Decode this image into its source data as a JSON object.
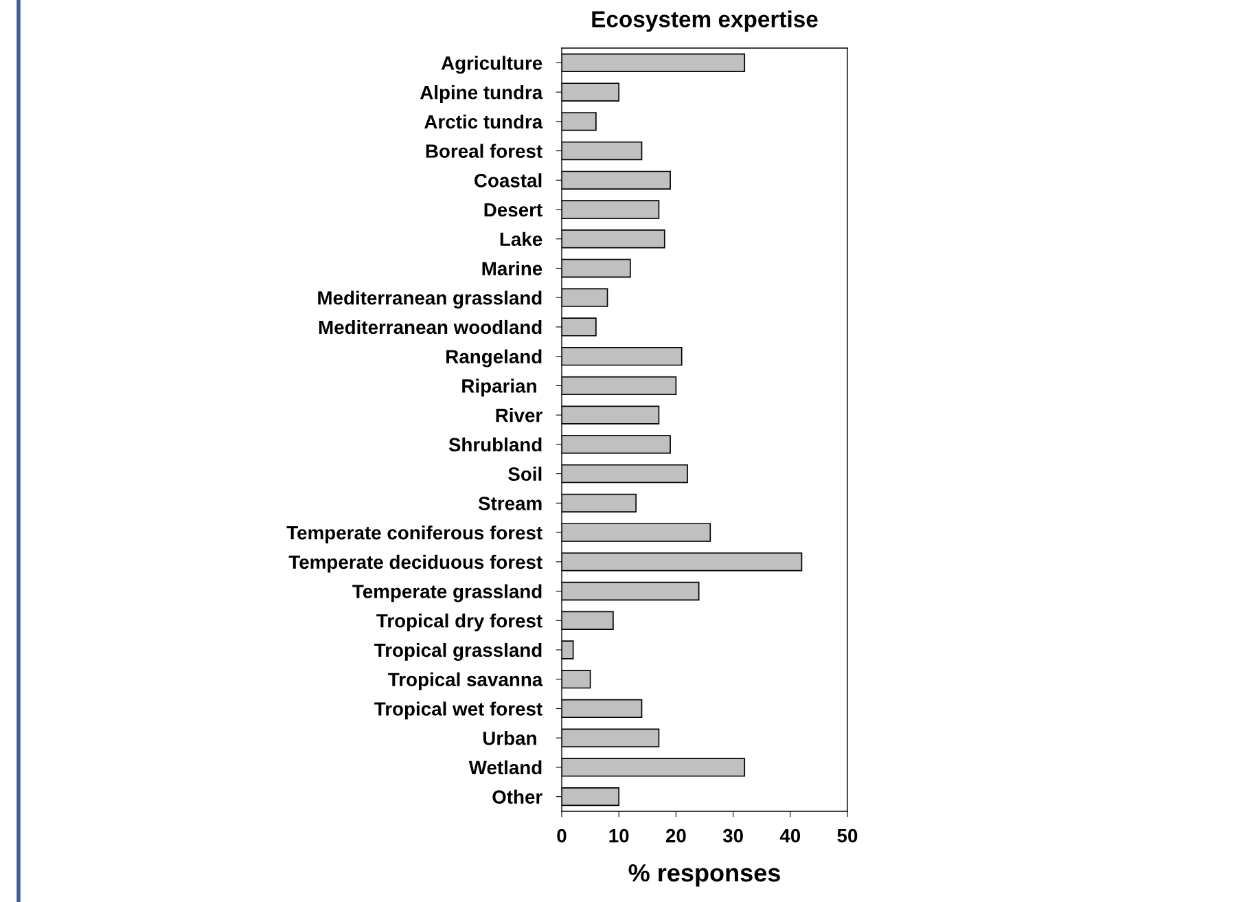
{
  "chart_data": {
    "type": "bar",
    "orientation": "horizontal",
    "title": "Ecosystem expertise",
    "xlabel": "% responses",
    "categories": [
      "Agriculture",
      "Alpine tundra",
      "Arctic tundra",
      "Boreal forest",
      "Coastal",
      "Desert",
      "Lake",
      "Marine",
      "Mediterranean grassland",
      "Mediterranean woodland",
      "Rangeland",
      "Riparian ",
      "River",
      "Shrubland",
      "Soil",
      "Stream",
      "Temperate coniferous forest",
      "Temperate deciduous forest",
      "Temperate grassland",
      "Tropical dry forest",
      "Tropical grassland",
      "Tropical savanna",
      "Tropical wet forest",
      "Urban ",
      "Wetland",
      "Other"
    ],
    "values": [
      32,
      10,
      6,
      14,
      19,
      17,
      18,
      12,
      8,
      6,
      21,
      20,
      17,
      19,
      22,
      13,
      26,
      42,
      24,
      9,
      2,
      5,
      14,
      17,
      32,
      10
    ],
    "color": "#c0c0c0",
    "xlim": [
      0,
      50
    ],
    "xticks": [
      0,
      10,
      20,
      30,
      40,
      50
    ],
    "grid": false,
    "legend": false
  }
}
